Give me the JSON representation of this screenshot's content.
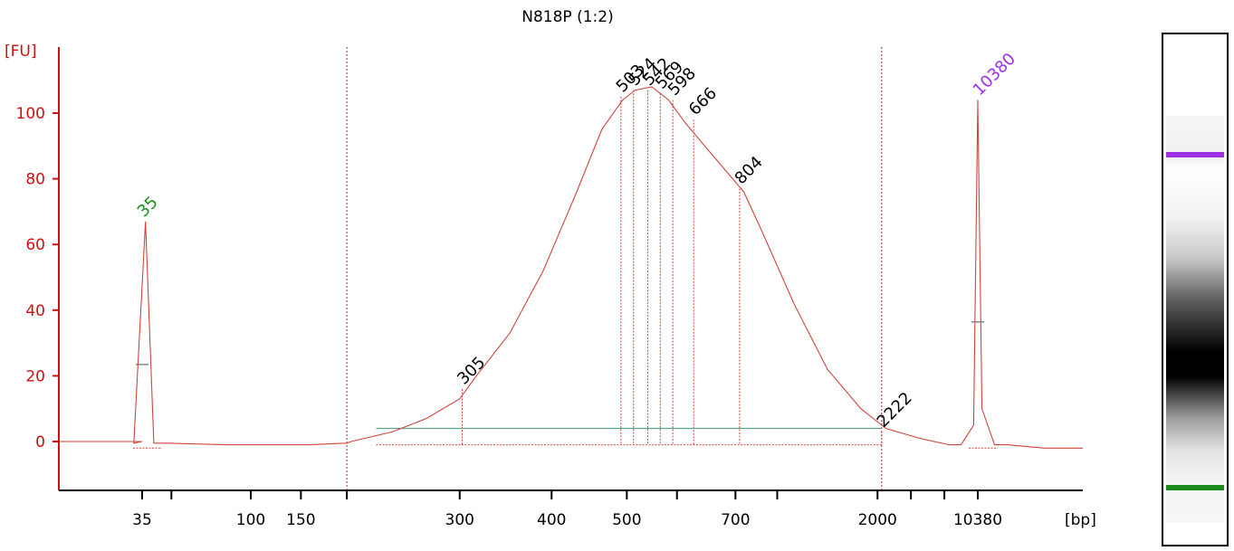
{
  "chart_data": {
    "type": "line",
    "title": "N818P (1:2)",
    "ylabel": "[FU]",
    "xlabel": "[bp]",
    "ylim": [
      -15,
      120
    ],
    "yticks": [
      0,
      20,
      40,
      60,
      80,
      100
    ],
    "xtick_labels": [
      {
        "label": "35",
        "t": 0.0
      },
      {
        "label": "100",
        "t": 0.13
      },
      {
        "label": "150",
        "t": 0.19
      },
      {
        "label": "300",
        "t": 0.38
      },
      {
        "label": "400",
        "t": 0.49
      },
      {
        "label": "500",
        "t": 0.58
      },
      {
        "label": "700",
        "t": 0.71
      },
      {
        "label": "2000",
        "t": 0.88
      },
      {
        "label": "10380",
        "t": 1.0
      }
    ],
    "minor_ticks": [
      0.035,
      0.245,
      0.64,
      0.76,
      0.92,
      0.96
    ],
    "region": {
      "start_t": 0.245,
      "end_t": 0.885
    },
    "series": {
      "x": [
        -0.1,
        0.0,
        -0.01,
        0.004,
        0.014,
        0.03,
        0.1,
        0.2,
        0.245,
        0.25,
        0.3,
        0.34,
        0.38,
        0.4,
        0.44,
        0.48,
        0.52,
        0.55,
        0.575,
        0.59,
        0.61,
        0.63,
        0.65,
        0.68,
        0.72,
        0.74,
        0.78,
        0.82,
        0.86,
        0.89,
        0.93,
        0.966,
        0.98,
        0.995,
        1.0,
        1.005,
        1.02,
        1.035,
        1.08,
        1.22
      ],
      "y": [
        0,
        0,
        -0.5,
        67,
        -0.5,
        -0.5,
        -1,
        -1,
        -0.5,
        0,
        3,
        7,
        13,
        20,
        33,
        52,
        76,
        95,
        104,
        107,
        108,
        104,
        97,
        88,
        76,
        65,
        42,
        22,
        10,
        4,
        1,
        -1,
        -1,
        5,
        104,
        10,
        -1,
        -1,
        -2,
        -2
      ]
    },
    "peaks": [
      {
        "label": "35",
        "x": 0.0,
        "y": 67,
        "color": "#1a8a1a"
      },
      {
        "label": "305",
        "x": 0.383,
        "y": 16,
        "color": "#000000"
      },
      {
        "label": "503",
        "x": 0.573,
        "y": 105,
        "color": "#000000"
      },
      {
        "label": "524",
        "x": 0.588,
        "y": 107,
        "color": "#000000"
      },
      {
        "label": "542",
        "x": 0.605,
        "y": 107,
        "color": "#000000"
      },
      {
        "label": "569",
        "x": 0.62,
        "y": 106,
        "color": "#000000"
      },
      {
        "label": "598",
        "x": 0.635,
        "y": 104,
        "color": "#000000"
      },
      {
        "label": "666",
        "x": 0.66,
        "y": 98,
        "color": "#000000"
      },
      {
        "label": "804",
        "x": 0.715,
        "y": 77,
        "color": "#000000"
      },
      {
        "label": "2222",
        "x": 0.885,
        "y": 3,
        "color": "#000000"
      },
      {
        "label": "10380",
        "x": 1.0,
        "y": 104,
        "color": "#9b30e6"
      }
    ],
    "grid": false,
    "colors": {
      "trace": "#d0453d",
      "axis": "#d01010",
      "baseline": "#5aa08a",
      "lower_marker": "#1a8a1a",
      "upper_marker": "#9b30e6"
    }
  },
  "gel": {
    "lower_marker_color": "#1a8a1a",
    "upper_marker_color": "#9b30e6"
  }
}
